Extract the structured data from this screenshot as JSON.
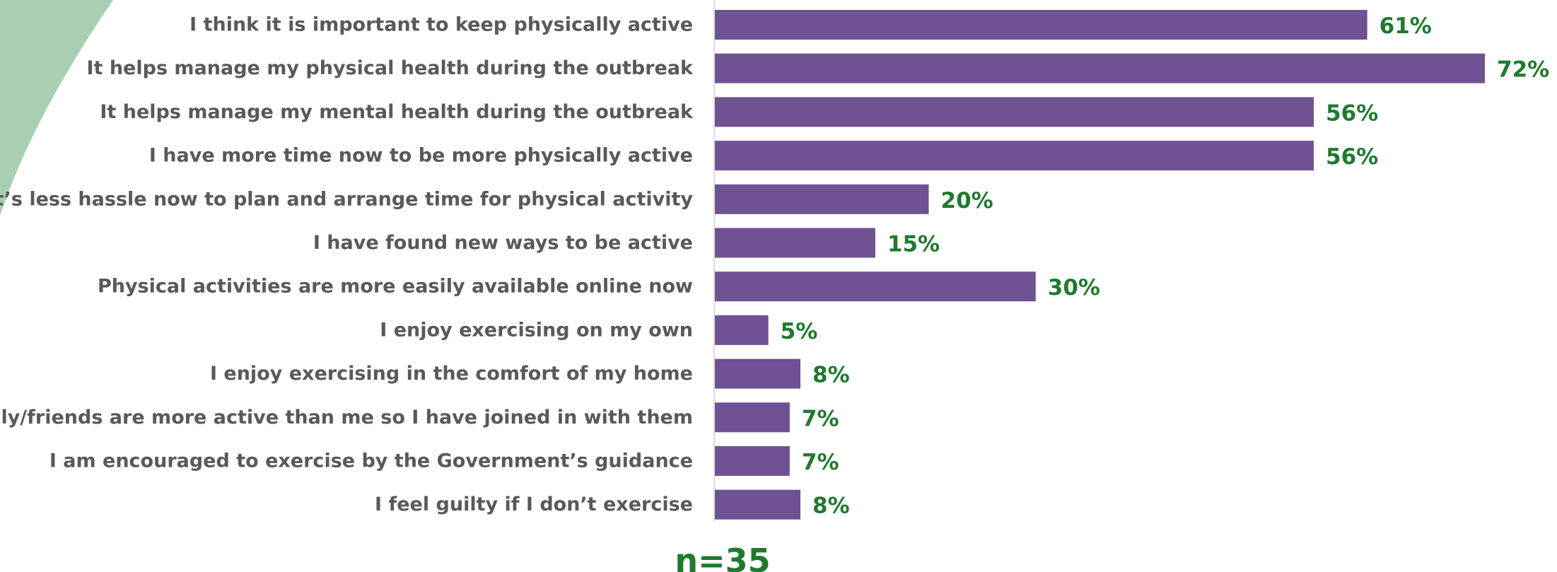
{
  "colors": {
    "bar": "#6f5293",
    "value_label": "#1f7a2e",
    "category_label": "#595959",
    "axis_line": "#d0d0d0",
    "decor_shape": "#a8cfb2"
  },
  "chart_data": {
    "type": "bar",
    "orientation": "horizontal",
    "categories": [
      "I think it is important to keep physically active",
      "It helps manage my physical health during the outbreak",
      "It helps manage my mental health during the outbreak",
      "I have more time now to be more physically active",
      "It’s less hassle now to plan and arrange time for physical activity",
      "I have found new ways to be active",
      "Physical activities are more easily available online now",
      "I enjoy exercising on my own",
      "I enjoy exercising in the comfort of my home",
      "My family/friends are more active than me so I have joined in with them",
      "I am encouraged to exercise by the Government’s guidance",
      "I feel guilty if I don’t exercise"
    ],
    "values": [
      61,
      72,
      56,
      56,
      20,
      15,
      30,
      5,
      8,
      7,
      7,
      8
    ],
    "value_labels": [
      "61%",
      "72%",
      "56%",
      "56%",
      "20%",
      "15%",
      "30%",
      "5%",
      "8%",
      "7%",
      "7%",
      "8%"
    ],
    "unit": "%",
    "xlim": [
      0,
      72
    ],
    "grid": false,
    "legend": "none",
    "annotation": "n=35"
  }
}
